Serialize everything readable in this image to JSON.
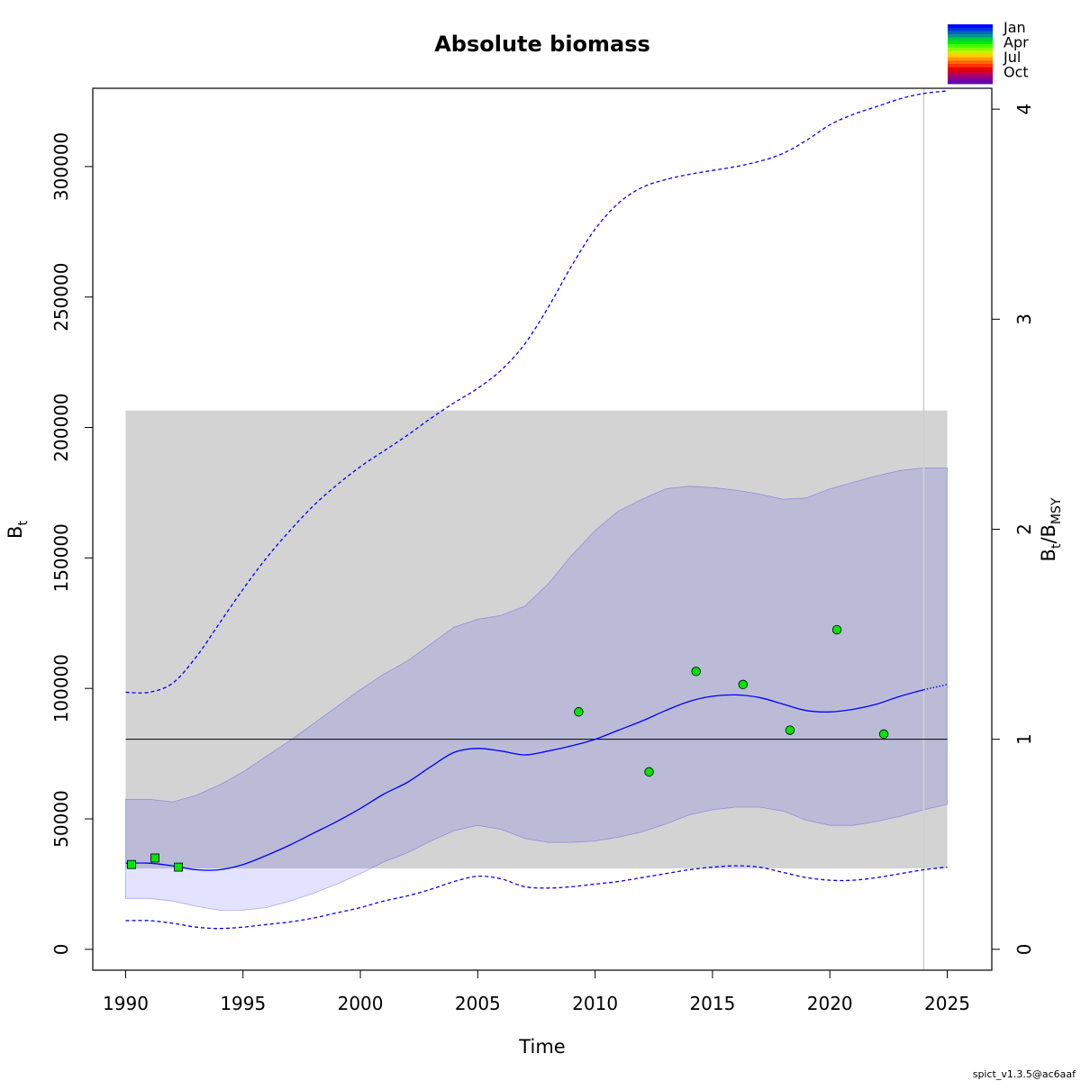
{
  "chart_data": {
    "type": "line",
    "title": "Absolute biomass",
    "xlabel": "Time",
    "ylabel_main": "B",
    "ylabel_sub": "t",
    "y2label": {
      "b": "B",
      "t": "t",
      "slash": "/B",
      "msy": "MSY"
    },
    "xlim": [
      1988.6,
      2026.9
    ],
    "ylim": [
      -8000,
      330000
    ],
    "x_ticks": [
      1990,
      1995,
      2000,
      2005,
      2010,
      2015,
      2020,
      2025
    ],
    "y_ticks": [
      0,
      50000,
      100000,
      150000,
      200000,
      250000,
      300000
    ],
    "y2_ticks": [
      0,
      1,
      2,
      3,
      4
    ],
    "bmsy": 80500,
    "bmsy_ci_band": {
      "x": [
        1990,
        2025
      ],
      "lower": 31000,
      "upper": 206500
    },
    "vline_x": 2024,
    "grid": false,
    "series": [
      {
        "name": "",
        "role": "estimate",
        "color": "#0000ff",
        "x": [
          1990,
          1991,
          1992,
          1993,
          1994,
          1995,
          1996,
          1997,
          1998,
          1999,
          2000,
          2001,
          2002,
          2003,
          2004,
          2005,
          2006,
          2007,
          2008,
          2009,
          2010,
          2011,
          2012,
          2013,
          2014,
          2015,
          2016,
          2017,
          2018,
          2019,
          2020,
          2021,
          2022,
          2023,
          2024
        ],
        "y": [
          33000,
          33000,
          32000,
          30500,
          30500,
          32500,
          36000,
          40000,
          44500,
          49000,
          54000,
          59500,
          64000,
          70000,
          75500,
          77000,
          76000,
          74500,
          76000,
          78000,
          80500,
          84000,
          87500,
          91500,
          95000,
          97000,
          97500,
          96500,
          94000,
          91500,
          91000,
          92000,
          94000,
          97000,
          99500
        ]
      },
      {
        "name": "",
        "role": "forecast",
        "color": "#0000ff",
        "x": [
          2024,
          2025
        ],
        "y": [
          99500,
          101500
        ]
      },
      {
        "name": "",
        "role": "ci-upper",
        "color": "#0000ff",
        "x": [
          1990,
          1991,
          1992,
          1993,
          1994,
          1995,
          1996,
          1997,
          1998,
          1999,
          2000,
          2001,
          2002,
          2003,
          2004,
          2005,
          2006,
          2007,
          2008,
          2009,
          2010,
          2011,
          2012,
          2013,
          2014,
          2015,
          2016,
          2017,
          2018,
          2019,
          2020,
          2021,
          2022,
          2023,
          2024,
          2025
        ],
        "y": [
          98500,
          98500,
          102000,
          112000,
          125000,
          138000,
          150000,
          160500,
          170000,
          178000,
          185000,
          191000,
          197000,
          203500,
          209500,
          215000,
          222000,
          232000,
          246000,
          262000,
          276000,
          286000,
          292000,
          295000,
          297000,
          298500,
          300000,
          302000,
          305000,
          310000,
          316000,
          320000,
          323000,
          326000,
          328000,
          329000
        ]
      },
      {
        "name": "",
        "role": "ci-lower",
        "color": "#0000ff",
        "x": [
          1990,
          1991,
          1992,
          1993,
          1994,
          1995,
          1996,
          1997,
          1998,
          1999,
          2000,
          2001,
          2002,
          2003,
          2004,
          2005,
          2006,
          2007,
          2008,
          2009,
          2010,
          2011,
          2012,
          2013,
          2014,
          2015,
          2016,
          2017,
          2018,
          2019,
          2020,
          2021,
          2022,
          2023,
          2024,
          2025
        ],
        "y": [
          11000,
          11000,
          10000,
          8500,
          8000,
          8500,
          9500,
          10500,
          12000,
          14000,
          16000,
          18500,
          20500,
          23000,
          26000,
          28000,
          27000,
          24000,
          23500,
          24000,
          25000,
          26000,
          27500,
          29000,
          30500,
          31500,
          32000,
          31500,
          29500,
          27500,
          26500,
          26500,
          27500,
          29000,
          30500,
          31500
        ]
      }
    ],
    "bbmsy_ci_band": {
      "x": [
        1990,
        1991,
        1992,
        1993,
        1994,
        1995,
        1996,
        1997,
        1998,
        1999,
        2000,
        2001,
        2002,
        2003,
        2004,
        2005,
        2006,
        2007,
        2008,
        2009,
        2010,
        2011,
        2012,
        2013,
        2014,
        2015,
        2016,
        2017,
        2018,
        2019,
        2020,
        2021,
        2022,
        2023,
        2024,
        2025
      ],
      "upper": [
        57500,
        57500,
        56500,
        59000,
        63000,
        68000,
        74000,
        80000,
        86500,
        93000,
        99500,
        105500,
        110500,
        117000,
        123500,
        126500,
        128000,
        131500,
        140000,
        151000,
        160500,
        168000,
        172500,
        176500,
        177500,
        177000,
        176000,
        174500,
        172500,
        173000,
        176500,
        179000,
        181500,
        183500,
        184500,
        184500
      ],
      "lower": [
        19500,
        19500,
        18500,
        16500,
        15000,
        15000,
        16000,
        18500,
        21500,
        25000,
        29000,
        33500,
        37000,
        41500,
        45500,
        47500,
        46000,
        42500,
        41000,
        41000,
        41500,
        43000,
        45000,
        48000,
        51500,
        53500,
        54500,
        54500,
        53000,
        49500,
        47500,
        47500,
        49000,
        51000,
        53500,
        55500
      ]
    },
    "observations": [
      {
        "index": 1,
        "marker": "square",
        "color": "#00e400",
        "points": [
          [
            1990.25,
            32500
          ],
          [
            1991.25,
            35000
          ],
          [
            1992.25,
            31500
          ]
        ]
      },
      {
        "index": 2,
        "marker": "circle",
        "color": "#00e400",
        "points": [
          [
            2009.3,
            91000
          ],
          [
            2012.3,
            68000
          ],
          [
            2014.3,
            106500
          ],
          [
            2016.3,
            101500
          ],
          [
            2018.3,
            84000
          ],
          [
            2020.3,
            122500
          ],
          [
            2022.3,
            82500
          ]
        ]
      }
    ],
    "color_legend": {
      "labels": [
        "Jan",
        "Apr",
        "Jul",
        "Oct"
      ],
      "colors": [
        "#0000ff",
        "#0033dd",
        "#0066bb",
        "#009988",
        "#00cc44",
        "#00ee00",
        "#44ff00",
        "#88ff00",
        "#ccee00",
        "#ffcc00",
        "#ff9900",
        "#ff6600",
        "#ff3300",
        "#ee0000",
        "#cc0033",
        "#aa0066",
        "#880099",
        "#6600aa"
      ]
    }
  },
  "footer": "spict_v1.3.5@ac6aaf"
}
